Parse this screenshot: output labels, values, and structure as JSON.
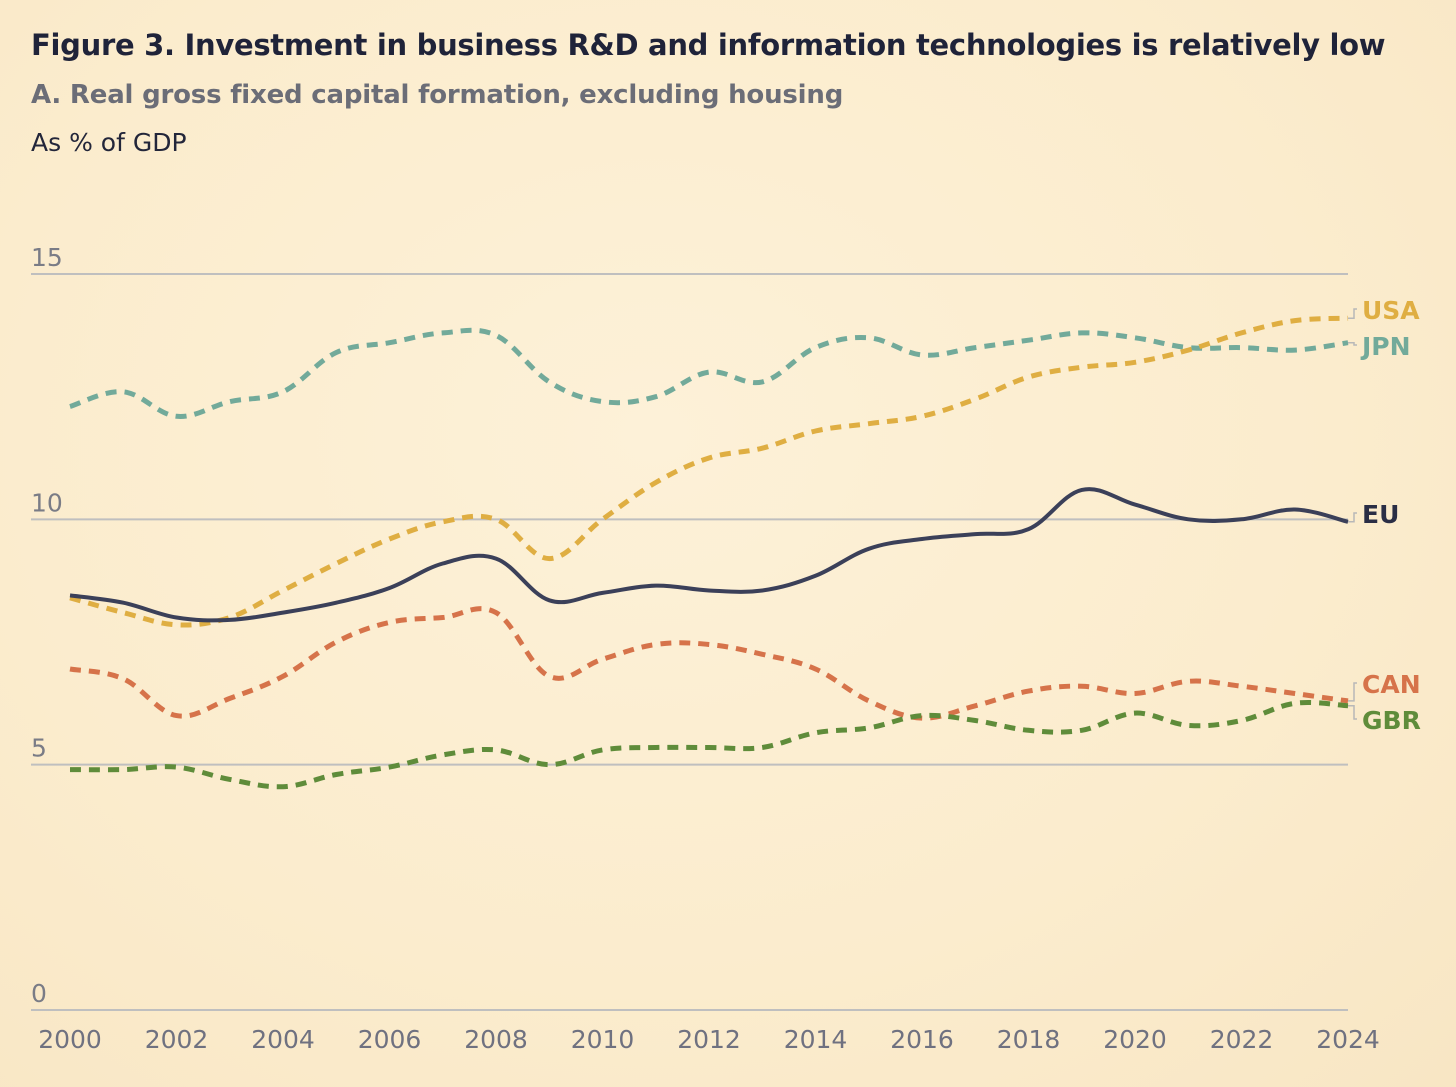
{
  "figure": {
    "title": "Figure 3. Investment in business R&D and information technologies is relatively low",
    "subtitle": "A. Real gross fixed capital formation, excluding housing",
    "unit": "As % of GDP"
  },
  "chart_data": {
    "type": "line",
    "title": "Figure 3. Investment in business R&D and information technologies is relatively low",
    "subtitle": "A. Real gross fixed capital formation, excluding housing",
    "ylabel": "As % of GDP",
    "xlabel": "",
    "ylim": [
      0,
      15
    ],
    "yticks": [
      "0",
      "5",
      "10",
      "15"
    ],
    "xlim": [
      2000,
      2024
    ],
    "xticks": [
      "2000",
      "2002",
      "2004",
      "2006",
      "2008",
      "2010",
      "2012",
      "2014",
      "2016",
      "2018",
      "2020",
      "2022",
      "2024"
    ],
    "grid": "horizontal",
    "legend": "direct labels at right end of lines",
    "x": [
      2000,
      2001,
      2002,
      2003,
      2004,
      2005,
      2006,
      2007,
      2008,
      2009,
      2010,
      2011,
      2012,
      2013,
      2014,
      2015,
      2016,
      2017,
      2018,
      2019,
      2020,
      2021,
      2022,
      2023,
      2024
    ],
    "series": [
      {
        "name": "USA",
        "color": "#dfae42",
        "style": "dashed",
        "values": [
          8.4,
          8.1,
          7.85,
          8.0,
          8.55,
          9.1,
          9.6,
          9.95,
          10.0,
          9.2,
          10.0,
          10.75,
          11.25,
          11.45,
          11.8,
          11.95,
          12.1,
          12.45,
          12.9,
          13.1,
          13.2,
          13.45,
          13.8,
          14.05,
          14.1
        ]
      },
      {
        "name": "JPN",
        "color": "#72aa9a",
        "style": "dashed",
        "values": [
          12.3,
          12.6,
          12.1,
          12.4,
          12.6,
          13.4,
          13.6,
          13.8,
          13.75,
          12.8,
          12.4,
          12.5,
          13.0,
          12.8,
          13.5,
          13.7,
          13.35,
          13.5,
          13.65,
          13.8,
          13.7,
          13.5,
          13.5,
          13.45,
          13.6
        ]
      },
      {
        "name": "EU",
        "color": "#3b4059",
        "style": "solid",
        "values": [
          8.45,
          8.3,
          8.0,
          7.95,
          8.1,
          8.3,
          8.6,
          9.1,
          9.2,
          8.35,
          8.5,
          8.65,
          8.55,
          8.55,
          8.85,
          9.4,
          9.6,
          9.7,
          9.8,
          10.6,
          10.3,
          10.0,
          10.0,
          10.2,
          9.95
        ]
      },
      {
        "name": "CAN",
        "color": "#d6734a",
        "style": "dashed",
        "values": [
          6.95,
          6.75,
          6.0,
          6.35,
          6.8,
          7.5,
          7.9,
          8.0,
          8.1,
          6.8,
          7.15,
          7.45,
          7.45,
          7.25,
          6.95,
          6.3,
          5.95,
          6.2,
          6.5,
          6.6,
          6.45,
          6.7,
          6.6,
          6.45,
          6.3
        ]
      },
      {
        "name": "GBR",
        "color": "#5f8c3a",
        "style": "dashed",
        "values": [
          4.9,
          4.9,
          4.95,
          4.7,
          4.55,
          4.8,
          4.95,
          5.2,
          5.3,
          5.0,
          5.3,
          5.35,
          5.35,
          5.35,
          5.65,
          5.75,
          6.0,
          5.9,
          5.7,
          5.7,
          6.05,
          5.8,
          5.9,
          6.25,
          6.2
        ]
      }
    ],
    "labels": [
      {
        "name": "USA",
        "color": "#dfae42"
      },
      {
        "name": "JPN",
        "color": "#72aa9a"
      },
      {
        "name": "EU",
        "color": "#2a2e45"
      },
      {
        "name": "CAN",
        "color": "#d6734a"
      },
      {
        "name": "GBR",
        "color": "#5f8c3a"
      }
    ]
  }
}
